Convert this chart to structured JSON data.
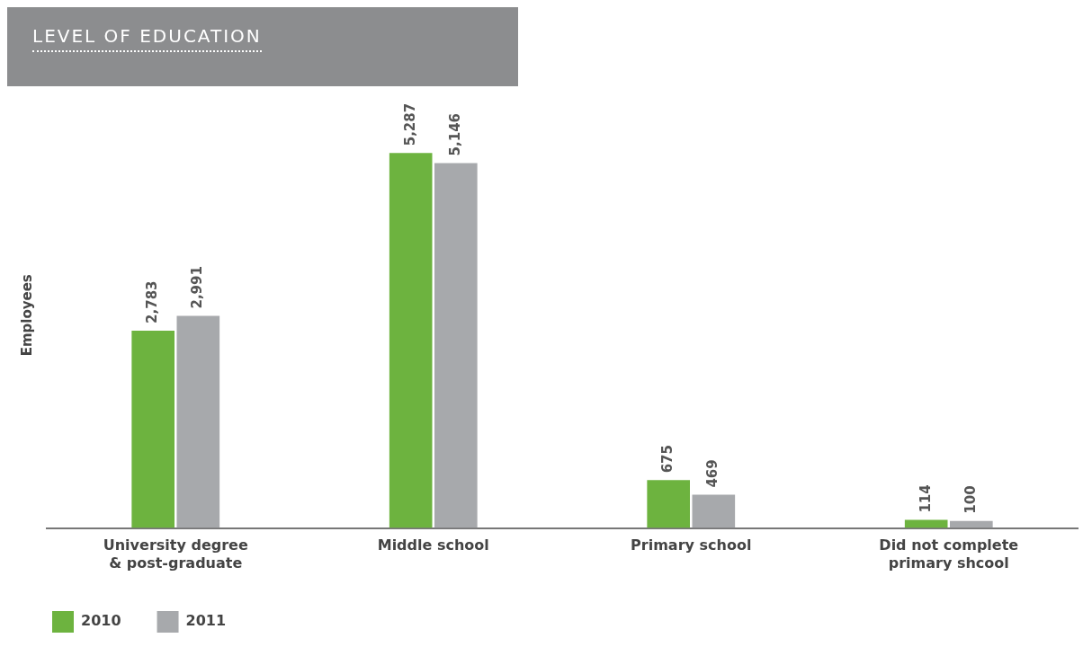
{
  "chart_data": {
    "type": "bar",
    "title": "LEVEL OF EDUCATION",
    "ylabel": "Employees",
    "categories": [
      "University degree & post-graduate",
      "Middle school",
      "Primary school",
      "Did not complete primary shcool"
    ],
    "series": [
      {
        "name": "2010",
        "color": "#6db33f",
        "values": [
          2783,
          5287,
          675,
          114
        ],
        "value_labels": [
          "2,783",
          "5,287",
          "675",
          "114"
        ]
      },
      {
        "name": "2011",
        "color": "#a7a9ac",
        "values": [
          2991,
          5146,
          469,
          100
        ],
        "value_labels": [
          "2,991",
          "5,146",
          "469",
          "100"
        ]
      }
    ],
    "legend": "bottom left"
  }
}
